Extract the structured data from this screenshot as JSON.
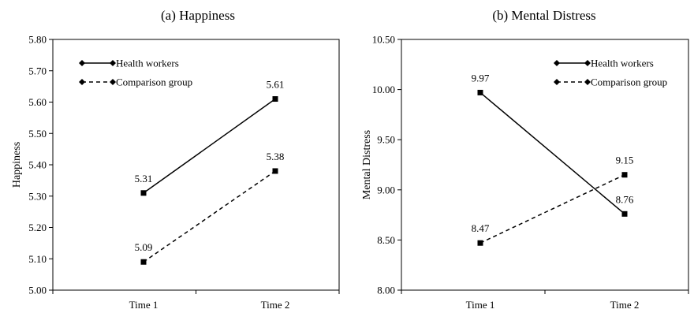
{
  "chart_data": [
    {
      "type": "line",
      "title": "(a) Happiness",
      "xlabel": "",
      "ylabel": "Happiness",
      "categories": [
        "Time 1",
        "Time 2"
      ],
      "ylim": [
        5.0,
        5.8
      ],
      "yticks": [
        "5.00",
        "5.10",
        "5.20",
        "5.30",
        "5.40",
        "5.50",
        "5.60",
        "5.70",
        "5.80"
      ],
      "legend_position": "top-left",
      "grid": false,
      "series": [
        {
          "name": "Health workers",
          "style": "solid",
          "values": [
            5.31,
            5.61
          ],
          "labels": [
            "5.31",
            "5.61"
          ]
        },
        {
          "name": "Comparison group",
          "style": "dashed",
          "values": [
            5.09,
            5.38
          ],
          "labels": [
            "5.09",
            "5.38"
          ]
        }
      ]
    },
    {
      "type": "line",
      "title": "(b) Mental Distress",
      "xlabel": "",
      "ylabel": "Mental Distress",
      "categories": [
        "Time 1",
        "Time 2"
      ],
      "ylim": [
        8.0,
        10.5
      ],
      "yticks": [
        "8.00",
        "8.50",
        "9.00",
        "9.50",
        "10.00",
        "10.50"
      ],
      "legend_position": "top-right",
      "grid": false,
      "series": [
        {
          "name": "Health workers",
          "style": "solid",
          "values": [
            9.97,
            8.76
          ],
          "labels": [
            "9.97",
            "8.76"
          ]
        },
        {
          "name": "Comparison group",
          "style": "dashed",
          "values": [
            8.47,
            9.15
          ],
          "labels": [
            "8.47",
            "9.15"
          ]
        }
      ]
    }
  ]
}
